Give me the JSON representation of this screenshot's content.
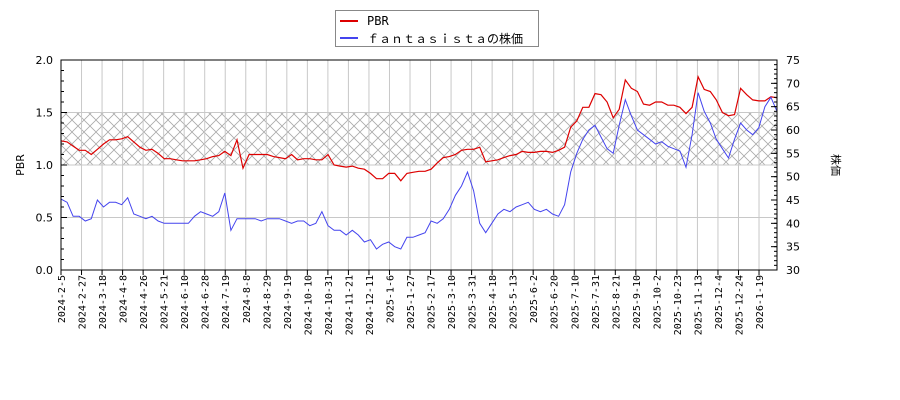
{
  "legend": {
    "items": [
      {
        "label": "PBR",
        "color": "#dd0000"
      },
      {
        "label": "ｆａｎｔａｓｉｓｔａの株価",
        "color": "#4444ee"
      }
    ]
  },
  "axes": {
    "left_title": "PBR",
    "right_title": "株価",
    "left_ticks": [
      "0.0",
      "0.5",
      "1.0",
      "1.5",
      "2.0"
    ],
    "right_ticks": [
      "30",
      "35",
      "40",
      "45",
      "50",
      "55",
      "60",
      "65",
      "70",
      "75"
    ]
  },
  "chart_data": {
    "type": "line",
    "title": "",
    "xlabel": "",
    "ylabel": "PBR",
    "ylabel_right": "株価",
    "ylim": [
      0.0,
      2.0
    ],
    "ylim_right": [
      30,
      75
    ],
    "grid": true,
    "shaded_band": {
      "axis": "left",
      "from": 1.0,
      "to": 1.5,
      "style": "crosshatch"
    },
    "legend_position": "top-center",
    "x_tick_labels": [
      "2024-2-5",
      "2024-2-27",
      "2024-3-18",
      "2024-4-8",
      "2024-4-26",
      "2024-5-21",
      "2024-6-10",
      "2024-6-28",
      "2024-7-19",
      "2024-8-8",
      "2024-8-29",
      "2024-9-19",
      "2024-10-10",
      "2024-10-31",
      "2024-11-21",
      "2024-12-11",
      "2025-1-6",
      "2025-1-27",
      "2025-2-17",
      "2025-3-10",
      "2025-3-31",
      "2025-4-18",
      "2025-5-13",
      "2025-6-2",
      "2025-6-20",
      "2025-7-10",
      "2025-7-31",
      "2025-8-21",
      "2025-9-10",
      "2025-10-2",
      "2025-10-23",
      "2025-11-13",
      "2025-12-4",
      "2025-12-24",
      "2026-1-19"
    ],
    "series": [
      {
        "name": "PBR",
        "axis": "left",
        "color": "#dd0000",
        "values": [
          1.23,
          1.22,
          1.18,
          1.14,
          1.14,
          1.1,
          1.15,
          1.2,
          1.24,
          1.24,
          1.25,
          1.27,
          1.22,
          1.17,
          1.14,
          1.15,
          1.11,
          1.06,
          1.06,
          1.05,
          1.04,
          1.04,
          1.04,
          1.05,
          1.06,
          1.08,
          1.09,
          1.13,
          1.09,
          1.24,
          0.97,
          1.1,
          1.1,
          1.1,
          1.1,
          1.08,
          1.07,
          1.06,
          1.1,
          1.05,
          1.06,
          1.06,
          1.05,
          1.05,
          1.1,
          1.0,
          0.99,
          0.98,
          0.99,
          0.97,
          0.96,
          0.92,
          0.87,
          0.87,
          0.92,
          0.92,
          0.85,
          0.92,
          0.93,
          0.94,
          0.94,
          0.96,
          1.02,
          1.07,
          1.08,
          1.1,
          1.14,
          1.15,
          1.15,
          1.17,
          1.03,
          1.04,
          1.05,
          1.07,
          1.09,
          1.1,
          1.13,
          1.12,
          1.12,
          1.13,
          1.13,
          1.12,
          1.14,
          1.17,
          1.36,
          1.42,
          1.55,
          1.55,
          1.68,
          1.67,
          1.6,
          1.45,
          1.53,
          1.81,
          1.73,
          1.7,
          1.58,
          1.57,
          1.6,
          1.6,
          1.57,
          1.57,
          1.55,
          1.49,
          1.55,
          1.84,
          1.72,
          1.7,
          1.62,
          1.5,
          1.47,
          1.48,
          1.73,
          1.67,
          1.62,
          1.61,
          1.61,
          1.65,
          1.64
        ]
      },
      {
        "name": "ｆａｎｔａｓｉｓｔａの株価",
        "axis": "right",
        "color": "#4444ee",
        "values": [
          45.2,
          44.5,
          41.5,
          41.5,
          40.5,
          41.0,
          45.0,
          43.5,
          44.5,
          44.5,
          44.0,
          45.5,
          42.0,
          41.5,
          41.0,
          41.5,
          40.5,
          40.0,
          40.0,
          40.0,
          40.0,
          40.0,
          41.5,
          42.5,
          42.0,
          41.5,
          42.5,
          46.5,
          38.5,
          41.0,
          41.0,
          41.0,
          41.0,
          40.5,
          41.0,
          41.0,
          41.0,
          40.5,
          40.0,
          40.5,
          40.5,
          39.5,
          40.0,
          42.5,
          39.5,
          38.5,
          38.5,
          37.5,
          38.5,
          37.5,
          36.0,
          36.5,
          34.5,
          35.5,
          36.0,
          35.0,
          34.5,
          37.0,
          37.0,
          37.5,
          38.0,
          40.5,
          40.0,
          41.0,
          43.0,
          46.0,
          48.0,
          51.0,
          47.0,
          40.0,
          38.0,
          40.0,
          42.0,
          43.0,
          42.5,
          43.5,
          44.0,
          44.5,
          43.0,
          42.5,
          43.0,
          42.0,
          41.5,
          44.0,
          51.0,
          55.0,
          58.0,
          60.0,
          61.0,
          58.5,
          56.0,
          55.0,
          61.0,
          66.5,
          63.0,
          60.0,
          59.0,
          58.0,
          57.0,
          57.5,
          56.5,
          56.0,
          55.5,
          52.0,
          59.0,
          68.0,
          64.0,
          61.5,
          58.0,
          56.0,
          54.0,
          58.0,
          61.5,
          60.0,
          59.0,
          60.5,
          65.0,
          67.0,
          64.0
        ]
      }
    ]
  }
}
